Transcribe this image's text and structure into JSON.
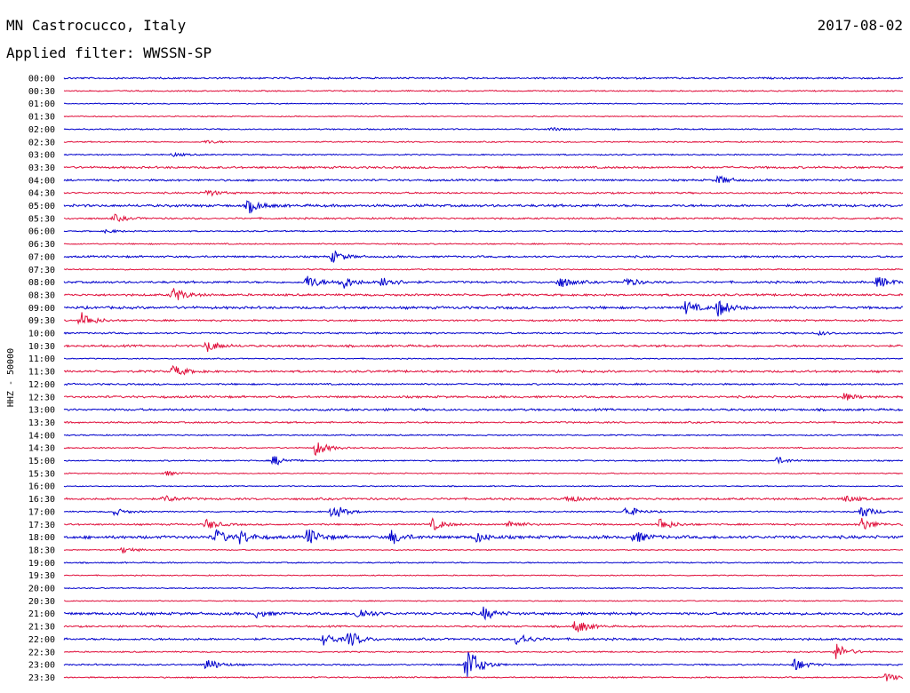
{
  "header": {
    "station": "MN Castrocucco, Italy",
    "date": "2017-08-02",
    "filter": "Applied filter: WWSSN-SP"
  },
  "chart_data": {
    "type": "helicorder",
    "ylabel": "HHZ - 50000",
    "trace_colors": [
      "#0000cc",
      "#e0103c"
    ],
    "rows": [
      {
        "time": "00:00",
        "events": [],
        "noise": 0.8
      },
      {
        "time": "00:30",
        "events": [],
        "noise": 0.6
      },
      {
        "time": "01:00",
        "events": [],
        "noise": 0.5
      },
      {
        "time": "01:30",
        "events": [],
        "noise": 0.5
      },
      {
        "time": "02:00",
        "events": [
          {
            "x": 0.58,
            "a": 2
          }
        ],
        "noise": 0.6
      },
      {
        "time": "02:30",
        "events": [
          {
            "x": 0.17,
            "a": 2
          }
        ],
        "noise": 0.6
      },
      {
        "time": "03:00",
        "events": [
          {
            "x": 0.13,
            "a": 2
          }
        ],
        "noise": 0.6
      },
      {
        "time": "03:30",
        "events": [],
        "noise": 1.0
      },
      {
        "time": "04:00",
        "events": [
          {
            "x": 0.78,
            "a": 5
          }
        ],
        "noise": 0.9
      },
      {
        "time": "04:30",
        "events": [
          {
            "x": 0.17,
            "a": 4
          }
        ],
        "noise": 0.8
      },
      {
        "time": "05:00",
        "events": [
          {
            "x": 0.22,
            "a": 8
          }
        ],
        "noise": 1.2
      },
      {
        "time": "05:30",
        "events": [
          {
            "x": 0.06,
            "a": 4
          }
        ],
        "noise": 0.8
      },
      {
        "time": "06:00",
        "events": [
          {
            "x": 0.05,
            "a": 2
          }
        ],
        "noise": 0.6
      },
      {
        "time": "06:30",
        "events": [],
        "noise": 0.6
      },
      {
        "time": "07:00",
        "events": [
          {
            "x": 0.32,
            "a": 7
          }
        ],
        "noise": 0.9
      },
      {
        "time": "07:30",
        "events": [],
        "noise": 0.6
      },
      {
        "time": "08:00",
        "events": [
          {
            "x": 0.29,
            "a": 8
          },
          {
            "x": 0.33,
            "a": 9
          },
          {
            "x": 0.38,
            "a": 8
          },
          {
            "x": 0.59,
            "a": 7
          },
          {
            "x": 0.67,
            "a": 5
          },
          {
            "x": 0.97,
            "a": 7
          }
        ],
        "noise": 1.0
      },
      {
        "time": "08:30",
        "events": [
          {
            "x": 0.13,
            "a": 9
          }
        ],
        "noise": 1.0
      },
      {
        "time": "09:00",
        "events": [
          {
            "x": 0.74,
            "a": 8
          },
          {
            "x": 0.78,
            "a": 10
          }
        ],
        "noise": 1.2
      },
      {
        "time": "09:30",
        "events": [
          {
            "x": 0.02,
            "a": 10
          }
        ],
        "noise": 0.8
      },
      {
        "time": "10:00",
        "events": [
          {
            "x": 0.9,
            "a": 2
          }
        ],
        "noise": 0.8
      },
      {
        "time": "10:30",
        "events": [
          {
            "x": 0.17,
            "a": 7
          }
        ],
        "noise": 1.0
      },
      {
        "time": "11:00",
        "events": [],
        "noise": 0.5
      },
      {
        "time": "11:30",
        "events": [
          {
            "x": 0.13,
            "a": 7
          }
        ],
        "noise": 1.0
      },
      {
        "time": "12:00",
        "events": [],
        "noise": 0.8
      },
      {
        "time": "12:30",
        "events": [
          {
            "x": 0.93,
            "a": 4
          }
        ],
        "noise": 1.0
      },
      {
        "time": "13:00",
        "events": [],
        "noise": 1.0
      },
      {
        "time": "13:30",
        "events": [],
        "noise": 0.8
      },
      {
        "time": "14:00",
        "events": [],
        "noise": 0.6
      },
      {
        "time": "14:30",
        "events": [
          {
            "x": 0.3,
            "a": 9
          }
        ],
        "noise": 0.6
      },
      {
        "time": "15:00",
        "events": [
          {
            "x": 0.25,
            "a": 6
          },
          {
            "x": 0.85,
            "a": 4
          }
        ],
        "noise": 0.6
      },
      {
        "time": "15:30",
        "events": [
          {
            "x": 0.12,
            "a": 3
          }
        ],
        "noise": 0.5
      },
      {
        "time": "16:00",
        "events": [],
        "noise": 0.5
      },
      {
        "time": "16:30",
        "events": [
          {
            "x": 0.12,
            "a": 4
          },
          {
            "x": 0.6,
            "a": 4
          },
          {
            "x": 0.93,
            "a": 4
          }
        ],
        "noise": 1.0
      },
      {
        "time": "17:00",
        "events": [
          {
            "x": 0.06,
            "a": 4
          },
          {
            "x": 0.32,
            "a": 10
          },
          {
            "x": 0.67,
            "a": 7
          },
          {
            "x": 0.95,
            "a": 8
          }
        ],
        "noise": 0.6
      },
      {
        "time": "17:30",
        "events": [
          {
            "x": 0.17,
            "a": 6
          },
          {
            "x": 0.44,
            "a": 7
          },
          {
            "x": 0.53,
            "a": 5
          },
          {
            "x": 0.71,
            "a": 8
          },
          {
            "x": 0.95,
            "a": 8
          }
        ],
        "noise": 0.8
      },
      {
        "time": "18:00",
        "events": [
          {
            "x": 0.18,
            "a": 9
          },
          {
            "x": 0.21,
            "a": 7
          },
          {
            "x": 0.29,
            "a": 10
          },
          {
            "x": 0.39,
            "a": 8
          },
          {
            "x": 0.49,
            "a": 6
          },
          {
            "x": 0.68,
            "a": 7
          }
        ],
        "noise": 1.4
      },
      {
        "time": "18:30",
        "events": [
          {
            "x": 0.07,
            "a": 4
          }
        ],
        "noise": 0.5
      },
      {
        "time": "19:00",
        "events": [],
        "noise": 0.6
      },
      {
        "time": "19:30",
        "events": [],
        "noise": 0.5
      },
      {
        "time": "20:00",
        "events": [],
        "noise": 0.5
      },
      {
        "time": "20:30",
        "events": [],
        "noise": 0.5
      },
      {
        "time": "21:00",
        "events": [
          {
            "x": 0.23,
            "a": 4
          },
          {
            "x": 0.35,
            "a": 7
          },
          {
            "x": 0.5,
            "a": 7
          }
        ],
        "noise": 1.2
      },
      {
        "time": "21:30",
        "events": [
          {
            "x": 0.61,
            "a": 9
          }
        ],
        "noise": 0.8
      },
      {
        "time": "22:00",
        "events": [
          {
            "x": 0.31,
            "a": 7
          },
          {
            "x": 0.34,
            "a": 9
          },
          {
            "x": 0.54,
            "a": 8
          }
        ],
        "noise": 1.0
      },
      {
        "time": "22:30",
        "events": [
          {
            "x": 0.92,
            "a": 10
          }
        ],
        "noise": 0.6
      },
      {
        "time": "23:00",
        "events": [
          {
            "x": 0.17,
            "a": 8
          },
          {
            "x": 0.48,
            "a": 24
          },
          {
            "x": 0.87,
            "a": 8
          }
        ],
        "noise": 0.7
      },
      {
        "time": "23:30",
        "events": [
          {
            "x": 0.98,
            "a": 5
          }
        ],
        "noise": 0.6
      }
    ]
  }
}
